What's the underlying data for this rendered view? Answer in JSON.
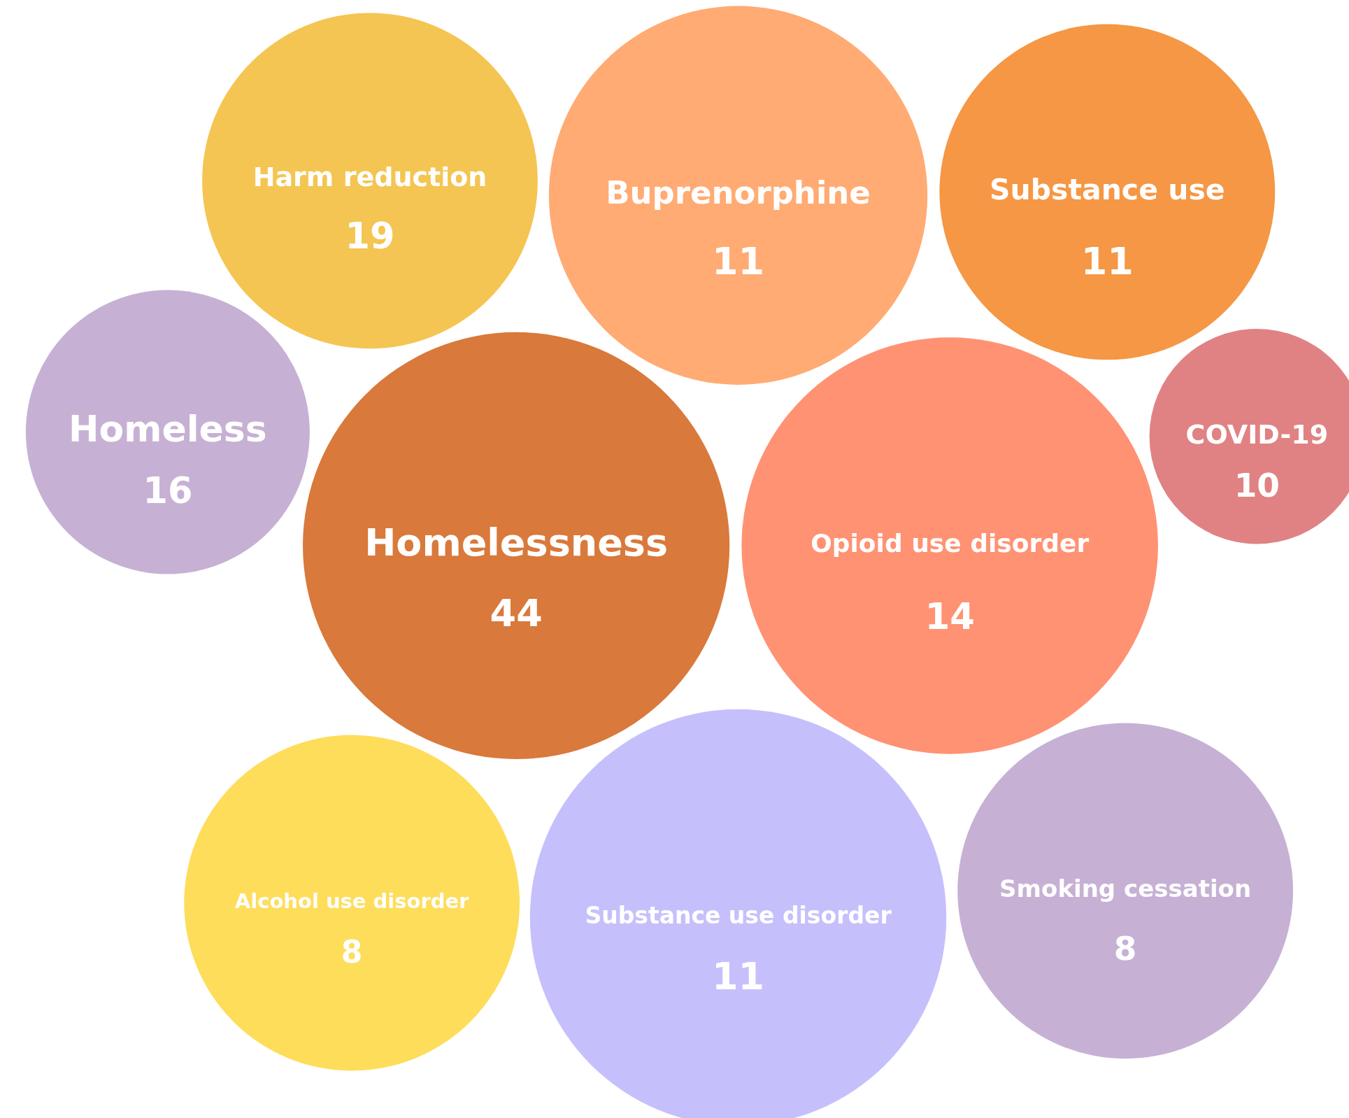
{
  "chart_data": {
    "type": "other",
    "data_labels": true,
    "categories": [
      "Harm reduction",
      "Buprenorphine",
      "Substance use",
      "Homeless",
      "Homelessness",
      "Opioid use disorder",
      "COVID-19",
      "Alcohol use disorder",
      "Substance use disorder",
      "Smoking cessation"
    ],
    "values": [
      19,
      11,
      11,
      16,
      44,
      14,
      10,
      8,
      11,
      8
    ],
    "colors": [
      "#f4c552",
      "#ffab73",
      "#f59744",
      "#c6b1d5",
      "#d9793b",
      "#ff9273",
      "#e08283",
      "#fedd5b",
      "#c5c0fc",
      "#c6b1d5"
    ]
  }
}
